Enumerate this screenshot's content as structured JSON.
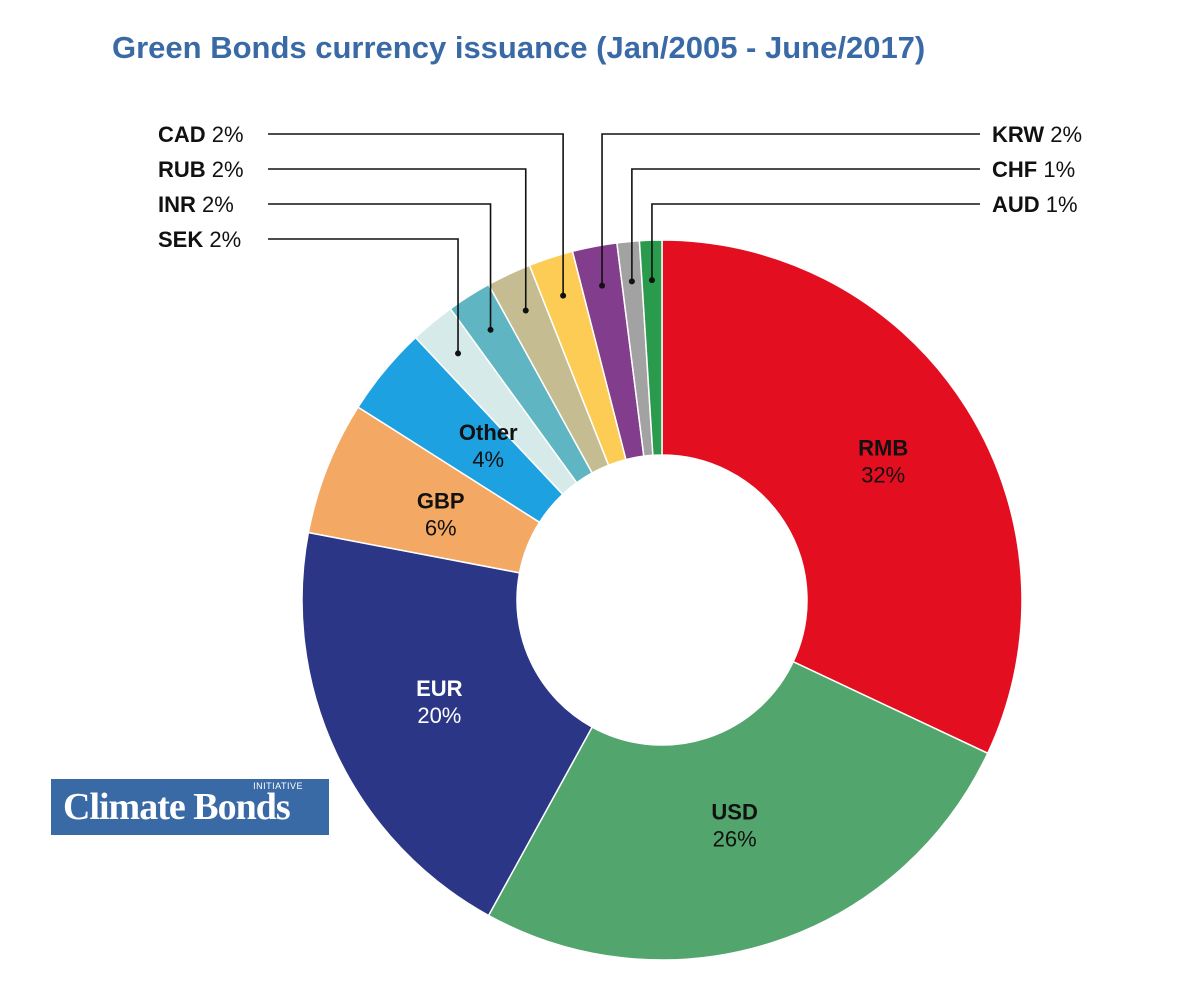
{
  "title": "Green Bonds currency issuance (Jan/2005 - June/2017)",
  "logo": {
    "main": "Climate Bonds",
    "sub": "INITIATIVE"
  },
  "chart_data": {
    "type": "pie",
    "variant": "donut",
    "title": "Green Bonds currency issuance (Jan/2005 - June/2017)",
    "slices": [
      {
        "name": "RMB",
        "value": 32,
        "label": "32%",
        "color": "#e30e20"
      },
      {
        "name": "USD",
        "value": 26,
        "label": "26%",
        "color": "#53a56e"
      },
      {
        "name": "EUR",
        "value": 20,
        "label": "20%",
        "color": "#2b3686"
      },
      {
        "name": "GBP",
        "value": 6,
        "label": "6%",
        "color": "#f3a964"
      },
      {
        "name": "Other",
        "value": 4,
        "label": "4%",
        "color": "#1da1e1"
      },
      {
        "name": "SEK",
        "value": 2,
        "label": "2%",
        "color": "#d6eae9"
      },
      {
        "name": "INR",
        "value": 2,
        "label": "2%",
        "color": "#5fb5c1"
      },
      {
        "name": "RUB",
        "value": 2,
        "label": "2%",
        "color": "#c5bd91"
      },
      {
        "name": "CAD",
        "value": 2,
        "label": "2%",
        "color": "#fdcc55"
      },
      {
        "name": "KRW",
        "value": 2,
        "label": "2%",
        "color": "#823d8c"
      },
      {
        "name": "CHF",
        "value": 1,
        "label": "1%",
        "color": "#a2a2a2"
      },
      {
        "name": "AUD",
        "value": 1,
        "label": "1%",
        "color": "#2a9a4d"
      }
    ]
  }
}
